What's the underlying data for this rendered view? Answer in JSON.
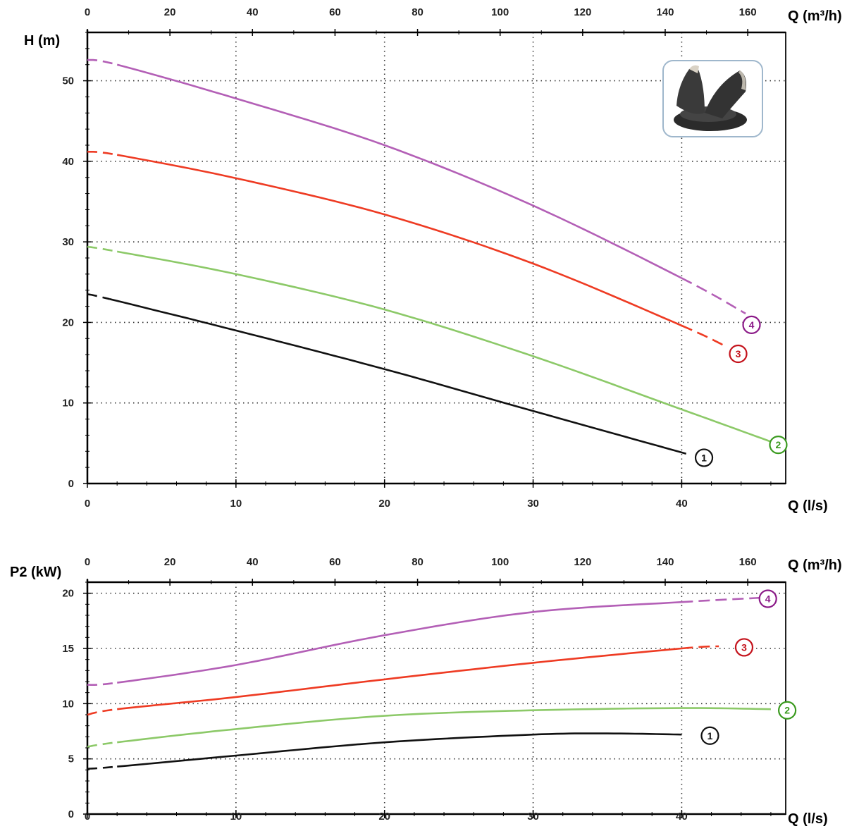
{
  "colors": {
    "1": "#111111",
    "2": "#8cc968",
    "3": "#ee3b23",
    "4": "#b35fb6"
  },
  "badge_colors": {
    "1": "#111111",
    "2": "#3a9a1e",
    "3": "#c4121b",
    "4": "#8b1a88"
  },
  "inset_icon": "impeller-icon",
  "chart_data": [
    {
      "type": "line",
      "title": "",
      "ylabel": "H (m)",
      "xlabel": "Q (l/s)",
      "x2label": "Q (m³/h)",
      "xlim": [
        0,
        47
      ],
      "ylim": [
        0,
        56
      ],
      "x2lim": [
        0,
        169.2
      ],
      "xticks": [
        0,
        10,
        20,
        30,
        40
      ],
      "yticks": [
        0,
        10,
        20,
        30,
        40,
        50
      ],
      "x2ticks": [
        0,
        20,
        40,
        60,
        80,
        100,
        120,
        140,
        160
      ],
      "grid": true,
      "series": [
        {
          "name": "1",
          "points": [
            [
              0,
              23.5
            ],
            [
              1.5,
              22.9
            ],
            [
              10,
              19.0
            ],
            [
              20,
              14.2
            ],
            [
              30,
              9.0
            ],
            [
              40.3,
              3.7
            ]
          ],
          "dashed_until": 1.5,
          "dashed_after": null
        },
        {
          "name": "2",
          "points": [
            [
              0,
              29.4
            ],
            [
              2,
              28.8
            ],
            [
              10,
              26.0
            ],
            [
              20,
              21.6
            ],
            [
              30,
              15.8
            ],
            [
              40,
              9.2
            ],
            [
              46,
              5.2
            ]
          ],
          "dashed_until": 2,
          "dashed_after": null
        },
        {
          "name": "3",
          "points": [
            [
              0,
              41.2
            ],
            [
              2,
              40.8
            ],
            [
              10,
              37.9
            ],
            [
              20,
              33.4
            ],
            [
              30,
              27.3
            ],
            [
              40,
              19.6
            ],
            [
              43,
              17.0
            ]
          ],
          "dashed_until": 2,
          "dashed_after": 40
        },
        {
          "name": "4",
          "points": [
            [
              0,
              52.6
            ],
            [
              2,
              52.0
            ],
            [
              10,
              47.8
            ],
            [
              20,
              42.0
            ],
            [
              30,
              34.5
            ],
            [
              40,
              25.5
            ],
            [
              44.3,
              21.1
            ]
          ],
          "dashed_until": 2,
          "dashed_after": 40
        }
      ],
      "labels": [
        {
          "text": "1",
          "x": 41.5,
          "y": 3.2
        },
        {
          "text": "2",
          "x": 46.5,
          "y": 4.8
        },
        {
          "text": "3",
          "x": 43.8,
          "y": 16.1
        },
        {
          "text": "4",
          "x": 44.7,
          "y": 19.7
        }
      ]
    },
    {
      "type": "line",
      "title": "",
      "ylabel": "P2 (kW)",
      "xlabel": "Q (l/s)",
      "x2label": "Q (m³/h)",
      "xlim": [
        0,
        47
      ],
      "ylim": [
        0,
        21
      ],
      "x2lim": [
        0,
        169.2
      ],
      "xticks": [
        0,
        10,
        20,
        30,
        40
      ],
      "yticks": [
        0,
        5,
        10,
        15,
        20
      ],
      "x2ticks": [
        0,
        20,
        40,
        60,
        80,
        100,
        120,
        140,
        160
      ],
      "grid": true,
      "series": [
        {
          "name": "1",
          "points": [
            [
              0,
              4.1
            ],
            [
              2,
              4.3
            ],
            [
              10,
              5.3
            ],
            [
              20,
              6.5
            ],
            [
              30,
              7.2
            ],
            [
              35,
              7.3
            ],
            [
              40,
              7.2
            ]
          ],
          "dashed_until": 2,
          "dashed_after": null
        },
        {
          "name": "2",
          "points": [
            [
              0,
              6.1
            ],
            [
              2,
              6.5
            ],
            [
              10,
              7.7
            ],
            [
              20,
              8.9
            ],
            [
              30,
              9.4
            ],
            [
              40,
              9.6
            ],
            [
              46,
              9.5
            ]
          ],
          "dashed_until": 2,
          "dashed_after": null
        },
        {
          "name": "3",
          "points": [
            [
              0,
              9.0
            ],
            [
              2,
              9.5
            ],
            [
              10,
              10.6
            ],
            [
              20,
              12.2
            ],
            [
              30,
              13.7
            ],
            [
              40,
              15.0
            ],
            [
              42.5,
              15.2
            ]
          ],
          "dashed_until": 2,
          "dashed_after": 40
        },
        {
          "name": "4",
          "points": [
            [
              0,
              11.7
            ],
            [
              2,
              11.9
            ],
            [
              10,
              13.5
            ],
            [
              20,
              16.2
            ],
            [
              30,
              18.3
            ],
            [
              40,
              19.2
            ],
            [
              45.5,
              19.6
            ]
          ],
          "dashed_until": 2,
          "dashed_after": 40
        }
      ],
      "labels": [
        {
          "text": "1",
          "x": 41.9,
          "y": 7.1
        },
        {
          "text": "2",
          "x": 47.1,
          "y": 9.4
        },
        {
          "text": "3",
          "x": 44.2,
          "y": 15.1
        },
        {
          "text": "4",
          "x": 45.8,
          "y": 19.5
        }
      ]
    }
  ]
}
